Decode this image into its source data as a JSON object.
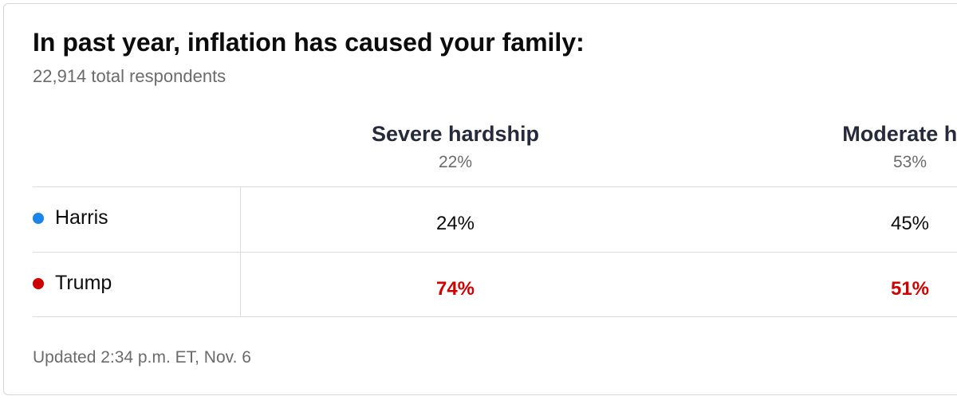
{
  "card": {
    "title": "In past year, inflation has caused your family:",
    "subtitle": "22,914 total respondents",
    "footer": "Updated 2:34 p.m. ET, Nov. 6"
  },
  "columns": [
    {
      "name": "Severe hardship",
      "share": "22%"
    },
    {
      "name": "Moderate har",
      "share": "53%"
    }
  ],
  "rows": [
    {
      "candidate": "Harris",
      "dot_color": "#1a84e8",
      "values": [
        "24%",
        "45%"
      ],
      "value_color": "#0c0c0c"
    },
    {
      "candidate": "Trump",
      "dot_color": "#cc0000",
      "values": [
        "74%",
        "51%"
      ],
      "value_color": "#cc0000"
    }
  ]
}
